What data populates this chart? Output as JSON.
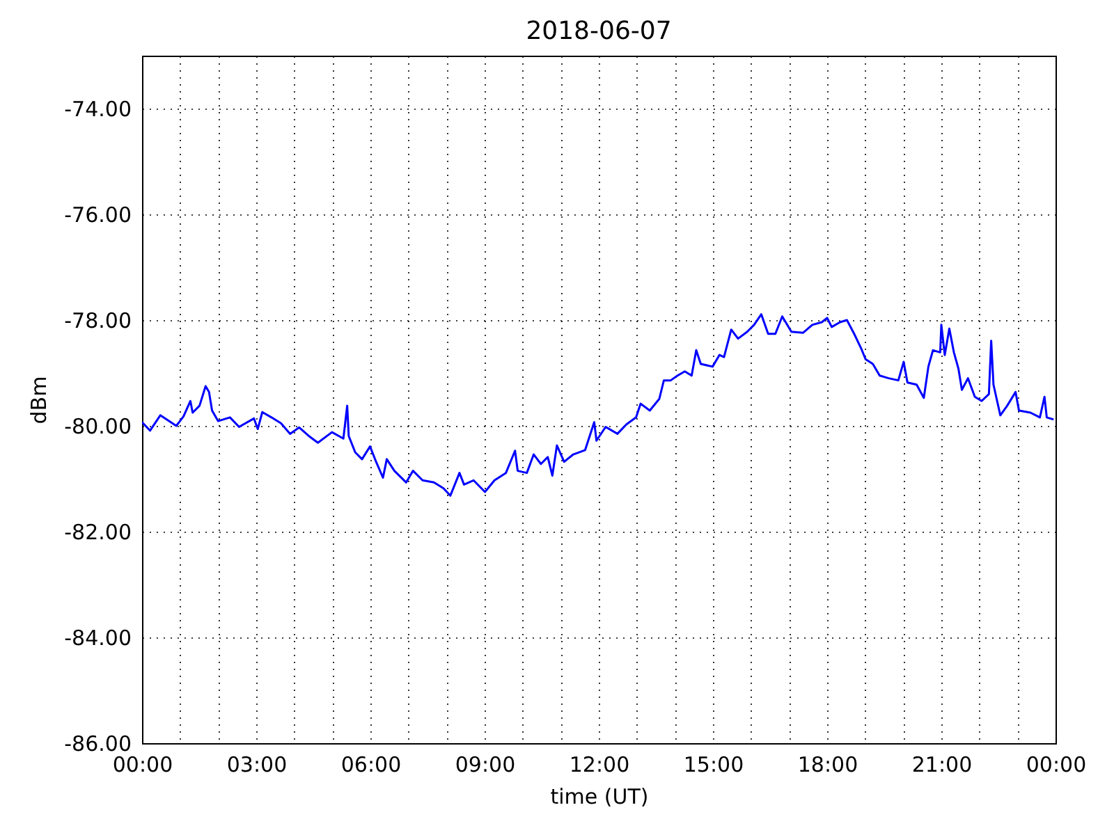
{
  "chart_data": {
    "type": "line",
    "title": "2018-06-07",
    "xlabel": "time (UT)",
    "ylabel": "dBm",
    "x": [
      0.0,
      0.21,
      0.48,
      0.9,
      1.09,
      1.27,
      1.33,
      1.51,
      1.67,
      1.76,
      1.84,
      2.0,
      2.31,
      2.55,
      2.94,
      3.04,
      3.16,
      3.4,
      3.65,
      3.89,
      4.13,
      4.38,
      4.62,
      4.99,
      5.29,
      5.39,
      5.43,
      5.6,
      5.78,
      5.99,
      6.15,
      6.33,
      6.43,
      6.63,
      6.94,
      7.12,
      7.37,
      7.67,
      7.92,
      8.1,
      8.34,
      8.46,
      8.71,
      9.01,
      9.26,
      9.56,
      9.8,
      9.87,
      10.11,
      10.29,
      10.48,
      10.66,
      10.78,
      10.9,
      11.09,
      11.33,
      11.64,
      11.88,
      11.94,
      12.18,
      12.49,
      12.73,
      12.98,
      13.1,
      13.34,
      13.59,
      13.71,
      13.89,
      14.07,
      14.26,
      14.44,
      14.56,
      14.68,
      14.99,
      15.17,
      15.29,
      15.48,
      15.66,
      15.9,
      16.08,
      16.27,
      16.45,
      16.64,
      16.82,
      17.06,
      17.37,
      17.61,
      17.86,
      18.0,
      18.12,
      18.34,
      18.52,
      18.71,
      18.89,
      19.01,
      19.2,
      19.38,
      19.62,
      19.87,
      20.01,
      20.11,
      20.35,
      20.54,
      20.66,
      20.78,
      20.97,
      21.0,
      21.09,
      21.21,
      21.33,
      21.45,
      21.54,
      21.7,
      21.88,
      22.06,
      22.25,
      22.31,
      22.37,
      22.55,
      22.73,
      22.95,
      23.04,
      23.34,
      23.59,
      23.71,
      23.77,
      23.95
    ],
    "series": [
      {
        "color": "#0000ff",
        "values": [
          -79.93,
          -80.09,
          -79.8,
          -80.0,
          -79.82,
          -79.53,
          -79.75,
          -79.62,
          -79.25,
          -79.36,
          -79.71,
          -79.91,
          -79.84,
          -80.02,
          -79.86,
          -80.06,
          -79.74,
          -79.84,
          -79.95,
          -80.15,
          -80.03,
          -80.19,
          -80.32,
          -80.12,
          -80.24,
          -79.62,
          -80.19,
          -80.5,
          -80.63,
          -80.39,
          -80.68,
          -80.98,
          -80.63,
          -80.85,
          -81.07,
          -80.85,
          -81.03,
          -81.07,
          -81.18,
          -81.32,
          -80.89,
          -81.11,
          -81.03,
          -81.25,
          -81.03,
          -80.89,
          -80.47,
          -80.85,
          -80.89,
          -80.54,
          -80.72,
          -80.59,
          -80.94,
          -80.37,
          -80.68,
          -80.54,
          -80.46,
          -79.93,
          -80.28,
          -80.02,
          -80.15,
          -79.97,
          -79.84,
          -79.58,
          -79.71,
          -79.49,
          -79.14,
          -79.14,
          -79.05,
          -78.97,
          -79.05,
          -78.57,
          -78.83,
          -78.88,
          -78.66,
          -78.7,
          -78.18,
          -78.35,
          -78.22,
          -78.09,
          -77.89,
          -78.26,
          -78.26,
          -77.93,
          -78.22,
          -78.24,
          -78.09,
          -78.04,
          -77.96,
          -78.13,
          -78.04,
          -78.0,
          -78.26,
          -78.53,
          -78.74,
          -78.83,
          -79.05,
          -79.1,
          -79.14,
          -78.79,
          -79.18,
          -79.22,
          -79.47,
          -78.88,
          -78.57,
          -78.61,
          -78.09,
          -78.66,
          -78.16,
          -78.61,
          -78.92,
          -79.32,
          -79.1,
          -79.45,
          -79.53,
          -79.4,
          -78.39,
          -79.22,
          -79.8,
          -79.62,
          -79.36,
          -79.71,
          -79.75,
          -79.84,
          -79.45,
          -79.84,
          -79.88
        ]
      }
    ],
    "xlim": [
      0,
      24
    ],
    "ylim": [
      -86,
      -73
    ],
    "xticks": [
      {
        "value": 0,
        "label": "00:00"
      },
      {
        "value": 1,
        "label": null
      },
      {
        "value": 2,
        "label": null
      },
      {
        "value": 3,
        "label": "03:00"
      },
      {
        "value": 4,
        "label": null
      },
      {
        "value": 5,
        "label": null
      },
      {
        "value": 6,
        "label": "06:00"
      },
      {
        "value": 7,
        "label": null
      },
      {
        "value": 8,
        "label": null
      },
      {
        "value": 9,
        "label": "09:00"
      },
      {
        "value": 10,
        "label": null
      },
      {
        "value": 11,
        "label": null
      },
      {
        "value": 12,
        "label": "12:00"
      },
      {
        "value": 13,
        "label": null
      },
      {
        "value": 14,
        "label": null
      },
      {
        "value": 15,
        "label": "15:00"
      },
      {
        "value": 16,
        "label": null
      },
      {
        "value": 17,
        "label": null
      },
      {
        "value": 18,
        "label": "18:00"
      },
      {
        "value": 19,
        "label": null
      },
      {
        "value": 20,
        "label": null
      },
      {
        "value": 21,
        "label": "21:00"
      },
      {
        "value": 22,
        "label": null
      },
      {
        "value": 23,
        "label": null
      },
      {
        "value": 24,
        "label": "00:00"
      }
    ],
    "yticks": [
      {
        "value": -86,
        "label": "-86.00"
      },
      {
        "value": -84,
        "label": "-84.00"
      },
      {
        "value": -82,
        "label": "-82.00"
      },
      {
        "value": -80,
        "label": "-80.00"
      },
      {
        "value": -78,
        "label": "-78.00"
      },
      {
        "value": -76,
        "label": "-76.00"
      },
      {
        "value": -74,
        "label": "-74.00"
      }
    ],
    "grid": true,
    "line_style": "solid"
  }
}
